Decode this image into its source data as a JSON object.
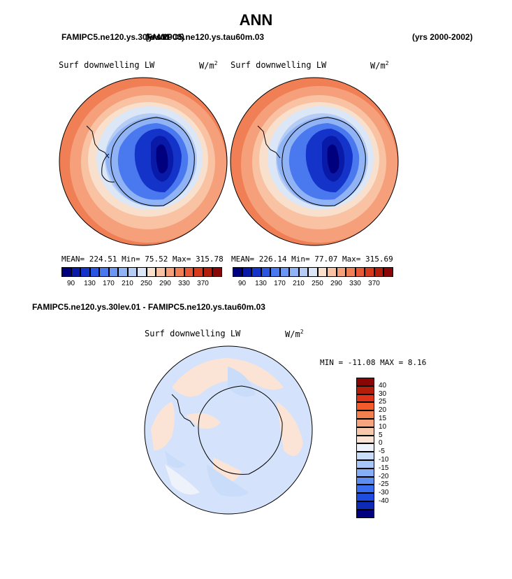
{
  "title": "ANN",
  "header": {
    "left_overlap_a": "FAMIPC5.ne120.ys.30lev.01",
    "left_overlap_b": "FAMIPC5.ne120.ys.tau60m.03",
    "left_overlap_c": "(yrs 2000)",
    "right": "(yrs 2000-2002)"
  },
  "panels": [
    {
      "field_label": "Surf downwelling LW",
      "units": "W/m",
      "units_exp": "2",
      "stats": "MEAN= 224.51  Min=  75.52  Max= 315.78"
    },
    {
      "field_label": "Surf downwelling LW",
      "units": "W/m",
      "units_exp": "2",
      "stats": "MEAN= 226.14  Min=  77.07  Max= 315.69"
    }
  ],
  "colorbar_top": {
    "colors": [
      "#00007f",
      "#0a1aa8",
      "#1433c9",
      "#2a55e0",
      "#4a78ee",
      "#6b97f2",
      "#8fb3f4",
      "#b5ccf5",
      "#dbe6f7",
      "#f9e0cc",
      "#f8c2a3",
      "#f5a07a",
      "#f07f55",
      "#e85a35",
      "#d63a1a",
      "#b51d0b",
      "#8a0505"
    ],
    "tick_labels": [
      "90",
      "130",
      "170",
      "210",
      "250",
      "290",
      "330",
      "370"
    ]
  },
  "diff": {
    "header": "FAMIPC5.ne120.ys.30lev.01 - FAMIPC5.ne120.ys.tau60m.03",
    "field_label": "Surf downwelling LW",
    "units": "W/m",
    "units_exp": "2",
    "minmax": "MIN = -11.08 MAX =   8.16",
    "colorbar": {
      "colors": [
        "#8a0505",
        "#b51d0b",
        "#e0331a",
        "#f55a2a",
        "#f5804f",
        "#f5a47e",
        "#f8c8ad",
        "#fbe4d6",
        "#eef2fa",
        "#c9dcfa",
        "#a8c6f8",
        "#86aef6",
        "#5f8ef2",
        "#3a6ef0",
        "#1e4be0",
        "#0d2bb8",
        "#000080"
      ],
      "labels": [
        "40",
        "30",
        "25",
        "20",
        "15",
        "10",
        "5",
        "0",
        "-5",
        "-10",
        "-15",
        "-20",
        "-25",
        "-30",
        "-40"
      ]
    }
  }
}
